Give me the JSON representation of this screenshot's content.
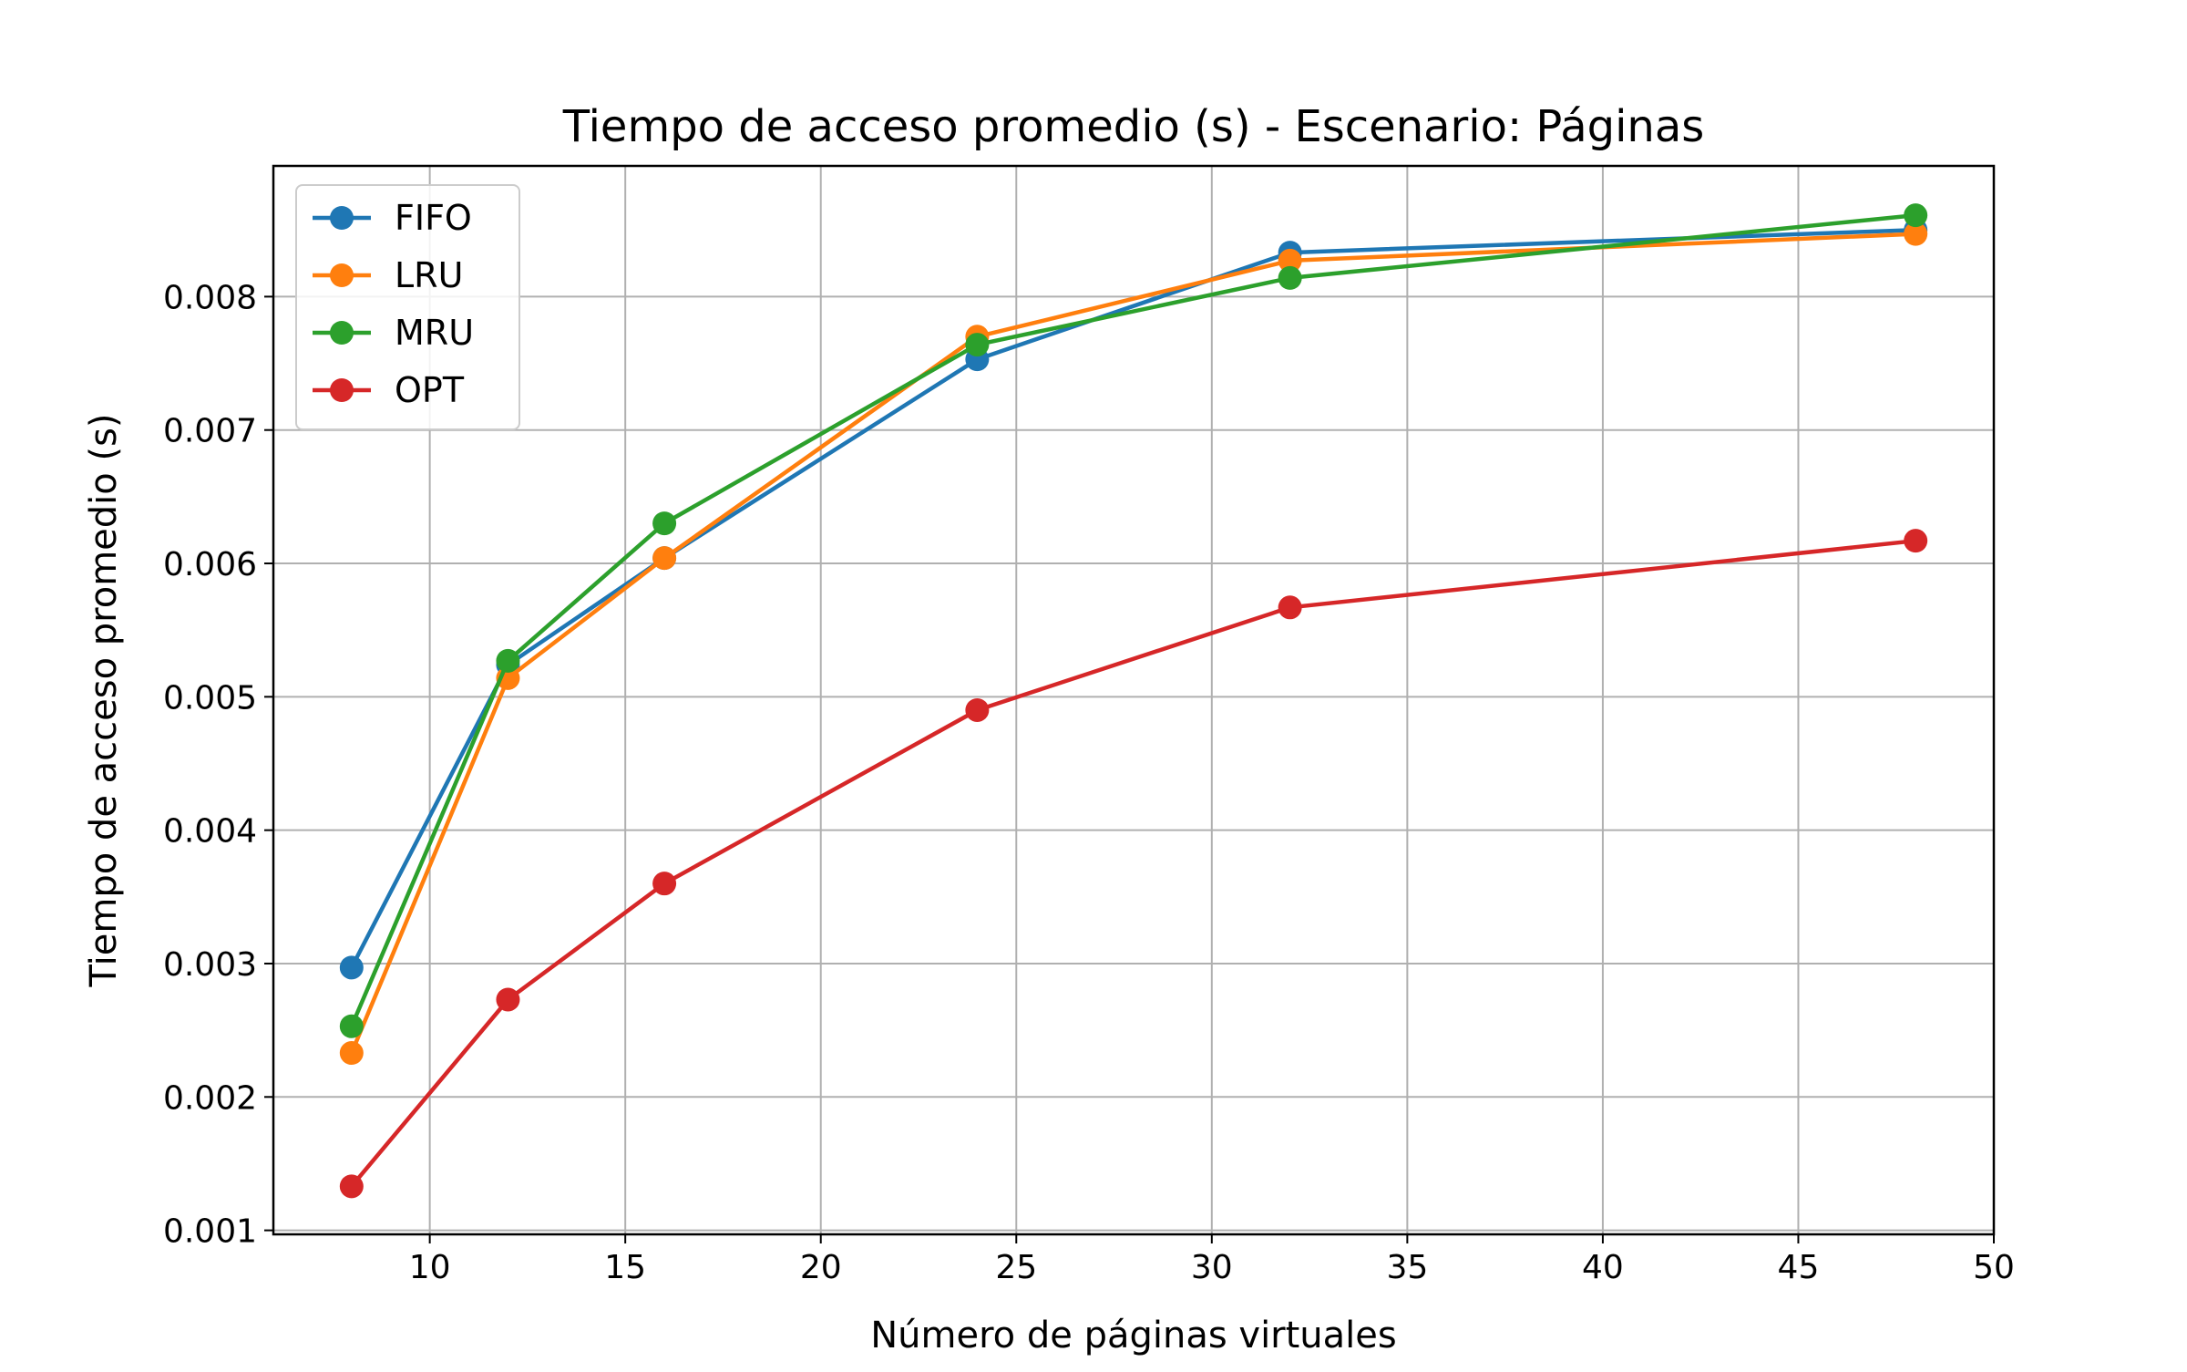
{
  "chart_data": {
    "type": "line",
    "title": "Tiempo de acceso promedio (s) - Escenario: Páginas",
    "xlabel": "Número de páginas virtuales",
    "ylabel": "Tiempo de acceso promedio (s)",
    "xlim": [
      6,
      50
    ],
    "ylim": [
      0.00097,
      0.00898
    ],
    "xticks": [
      10,
      15,
      20,
      25,
      30,
      35,
      40,
      45,
      50
    ],
    "xtick_labels": [
      "10",
      "15",
      "20",
      "25",
      "30",
      "35",
      "40",
      "45",
      "50"
    ],
    "yticks": [
      0.001,
      0.002,
      0.003,
      0.004,
      0.005,
      0.006,
      0.007,
      0.008
    ],
    "ytick_labels": [
      "0.001",
      "0.002",
      "0.003",
      "0.004",
      "0.005",
      "0.006",
      "0.007",
      "0.008"
    ],
    "grid": true,
    "legend_position": "top-left",
    "x": [
      8,
      12,
      16,
      24,
      32,
      48
    ],
    "series": [
      {
        "name": "FIFO",
        "color": "#1f77b4",
        "values": [
          0.00297,
          0.00524,
          0.00604,
          0.00753,
          0.00833,
          0.0085
        ]
      },
      {
        "name": "LRU",
        "color": "#ff7f0e",
        "values": [
          0.00233,
          0.00514,
          0.00604,
          0.0077,
          0.00827,
          0.00847
        ]
      },
      {
        "name": "MRU",
        "color": "#2ca02c",
        "values": [
          0.00253,
          0.00527,
          0.0063,
          0.00764,
          0.00814,
          0.00861
        ]
      },
      {
        "name": "OPT",
        "color": "#d62728",
        "values": [
          0.00133,
          0.00273,
          0.0036,
          0.0049,
          0.00567,
          0.00617
        ]
      }
    ]
  }
}
